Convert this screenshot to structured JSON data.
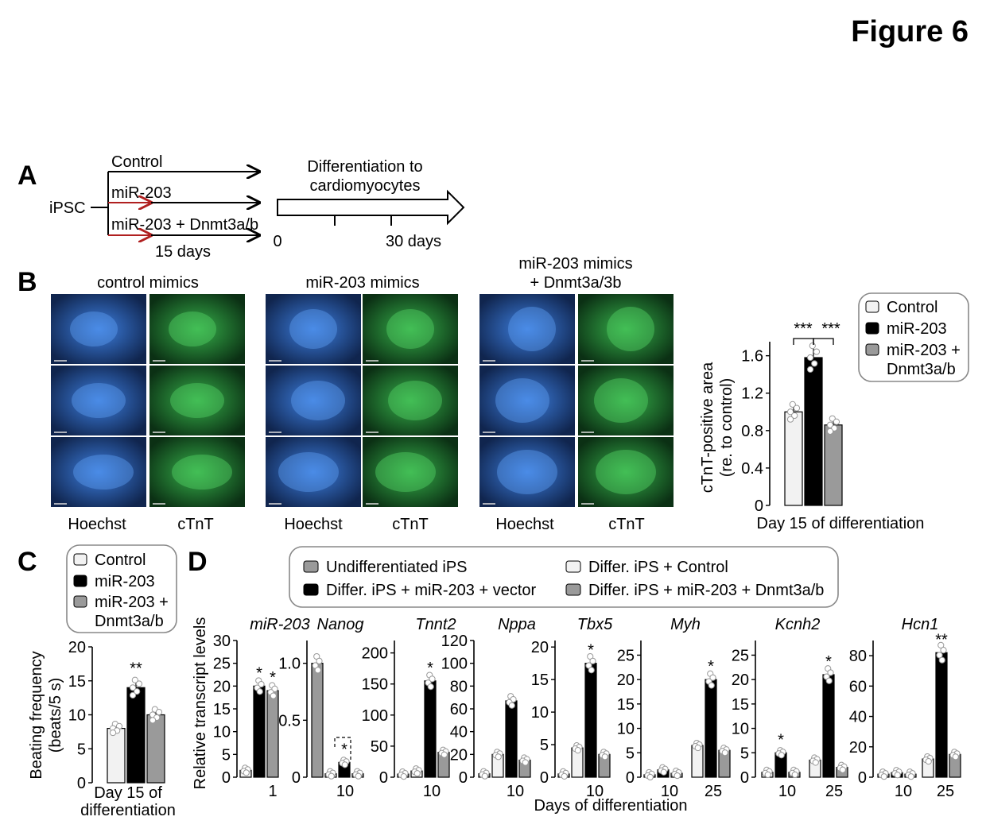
{
  "figure_title": "Figure 6",
  "panel_labels": {
    "a": "A",
    "b": "B",
    "c": "C",
    "d": "D"
  },
  "panel_a": {
    "source": "iPSC",
    "arms": [
      "Control",
      "miR-203",
      "miR-203 + Dnmt3a/b"
    ],
    "arm_duration": "15 days",
    "step": [
      "Differentiation to",
      "cardiomyocytes"
    ],
    "timeline_start": "0",
    "timeline_end": "30 days"
  },
  "panel_b": {
    "groups": [
      {
        "title_lines": [
          "control mimics"
        ],
        "stain_left": "Hoechst",
        "stain_right": "cTnT"
      },
      {
        "title_lines": [
          "miR-203 mimics"
        ],
        "stain_left": "Hoechst",
        "stain_right": "cTnT"
      },
      {
        "title_lines": [
          "miR-203 mimics",
          "+ Dnmt3a/3b"
        ],
        "stain_left": "Hoechst",
        "stain_right": "cTnT"
      }
    ],
    "colors": {
      "hoechst": "#1f4fa0",
      "ctnt": "#1e8a34"
    }
  },
  "legend_three": [
    "Control",
    "miR-203",
    "miR-203 +",
    "Dnmt3a/b"
  ],
  "legend_four": [
    "Undifferentiated iPS",
    "Differ. iPS + miR-203 + vector",
    "Differ. iPS + Control",
    "Differ. iPS + miR-203 + Dnmt3a/b"
  ],
  "chart_data": [
    {
      "type": "bar",
      "panel": "B",
      "ylabel_lines": [
        "cTnT-positive area",
        "(re. to control)"
      ],
      "xlabel": "Day 15 of differentiation",
      "yticks": [
        "0",
        "0.4",
        "0.8",
        "1.2",
        "1.6"
      ],
      "ylim": [
        0,
        1.75
      ],
      "series": [
        {
          "name": "Control",
          "value": 1.0,
          "color": "#f2f2f2"
        },
        {
          "name": "miR-203",
          "value": 1.58,
          "color": "#000000"
        },
        {
          "name": "miR-203 + Dnmt3a/b",
          "value": 0.86,
          "color": "#9a9a9a"
        }
      ],
      "significance": [
        "***",
        "***"
      ]
    },
    {
      "type": "bar",
      "panel": "C",
      "ylabel_lines": [
        "Beating frequency",
        "(beats/5 s)"
      ],
      "xlabel_lines": [
        "Day 15 of",
        "differentiation"
      ],
      "yticks": [
        "0",
        "5",
        "10",
        "15",
        "20"
      ],
      "ylim": [
        0,
        20
      ],
      "series": [
        {
          "name": "Control",
          "value": 8,
          "color": "#f2f2f2"
        },
        {
          "name": "miR-203",
          "value": 14,
          "color": "#000000"
        },
        {
          "name": "miR-203 + Dnmt3a/b",
          "value": 10,
          "color": "#9a9a9a"
        }
      ],
      "significance": [
        "**"
      ]
    },
    {
      "type": "bar",
      "panel": "D",
      "ylabel": "Relative transcript levels",
      "xlabel": "Days of differentiation",
      "series_order": [
        "Undifferentiated iPS",
        "Differ. iPS + Control",
        "Differ. iPS + miR-203 + vector",
        "Differ. iPS + miR-203 + Dnmt3a/b"
      ],
      "genes": [
        {
          "name": "miR-203",
          "ylim": [
            0,
            30
          ],
          "yticks": [
            "0",
            "5",
            "10",
            "15",
            "20",
            "25",
            "30"
          ],
          "groups": [
            {
              "day": "1",
              "values": [
                1.5,
                20,
                19
              ],
              "series": [
                "Differ. iPS + Control",
                "Differ. iPS + miR-203 + vector",
                "Differ. iPS + miR-203 + Dnmt3a/b"
              ],
              "marks": [
                "",
                "*",
                "*"
              ]
            }
          ]
        },
        {
          "name": "Nanog",
          "ylim": [
            0,
            1.2
          ],
          "yticks": [
            "0",
            "0.5",
            "1.0"
          ],
          "groups": [
            {
              "day": "10",
              "values": [
                1.0,
                0.03,
                0.13,
                0.03
              ],
              "marks": [
                "",
                "",
                "*",
                ""
              ]
            }
          ]
        },
        {
          "name": "Tnnt2",
          "ylim": [
            0,
            220
          ],
          "yticks": [
            "0",
            "50",
            "100",
            "150",
            "200"
          ],
          "groups": [
            {
              "day": "10",
              "values": [
                5,
                10,
                155,
                40
              ],
              "marks": [
                "",
                "",
                "*",
                ""
              ]
            }
          ]
        },
        {
          "name": "Nppa",
          "ylim": [
            0,
            120
          ],
          "yticks": [
            "0",
            "20",
            "40",
            "60",
            "80",
            "100",
            "120"
          ],
          "groups": [
            {
              "day": "10",
              "values": [
                3,
                20,
                67,
                15
              ],
              "marks": [
                "",
                "",
                "",
                ""
              ]
            }
          ]
        },
        {
          "name": "Tbx5",
          "ylim": [
            0,
            21
          ],
          "yticks": [
            "0",
            "5",
            "10",
            "15",
            "20"
          ],
          "groups": [
            {
              "day": "10",
              "values": [
                0.5,
                4.5,
                17.5,
                3.5
              ],
              "marks": [
                "",
                "",
                "*",
                ""
              ]
            }
          ]
        },
        {
          "name": "Myh",
          "ylim": [
            0,
            28
          ],
          "yticks": [
            "0",
            "5",
            "10",
            "15",
            "20",
            "25"
          ],
          "groups": [
            {
              "day": "10",
              "values": [
                0.5,
                1.5,
                0.8
              ],
              "series": [
                "Undifferentiated iPS",
                "Differ. iPS + miR-203 + vector",
                "Differ. iPS + miR-203 + Dnmt3a/b"
              ],
              "marks": [
                "",
                "",
                ""
              ]
            },
            {
              "day": "25",
              "values": [
                6.5,
                20,
                5.5
              ],
              "series": [
                "Differ. iPS + Control",
                "Differ. iPS + miR-203 + vector",
                "Differ. iPS + miR-203 + Dnmt3a/b"
              ],
              "marks": [
                "",
                "*",
                ""
              ]
            }
          ]
        },
        {
          "name": "Kcnh2",
          "ylim": [
            0,
            28
          ],
          "yticks": [
            "0",
            "5",
            "10",
            "15",
            "20",
            "25"
          ],
          "groups": [
            {
              "day": "10",
              "values": [
                1,
                5,
                1
              ],
              "series": [
                "Differ. iPS + Control",
                "Differ. iPS + miR-203 + vector",
                "Differ. iPS + miR-203 + Dnmt3a/b"
              ],
              "marks": [
                "",
                "*",
                ""
              ]
            },
            {
              "day": "25",
              "values": [
                3.5,
                21,
                2
              ],
              "series": [
                "Differ. iPS + Control",
                "Differ. iPS + miR-203 + vector",
                "Differ. iPS + miR-203 + Dnmt3a/b"
              ],
              "marks": [
                "",
                "*",
                ""
              ]
            }
          ]
        },
        {
          "name": "Hcn1",
          "ylim": [
            0,
            90
          ],
          "yticks": [
            "0",
            "20",
            "40",
            "60",
            "80"
          ],
          "groups": [
            {
              "day": "10",
              "values": [
                2,
                3,
                2
              ],
              "series": [
                "Undifferentiated iPS",
                "Differ. iPS + miR-203 + vector",
                "Differ. iPS + miR-203 + Dnmt3a/b"
              ],
              "marks": [
                "",
                "",
                ""
              ]
            },
            {
              "day": "25",
              "values": [
                12,
                82,
                15
              ],
              "series": [
                "Differ. iPS + Control",
                "Differ. iPS + miR-203 + vector",
                "Differ. iPS + miR-203 + Dnmt3a/b"
              ],
              "marks": [
                "",
                "**",
                ""
              ]
            }
          ]
        }
      ]
    }
  ]
}
